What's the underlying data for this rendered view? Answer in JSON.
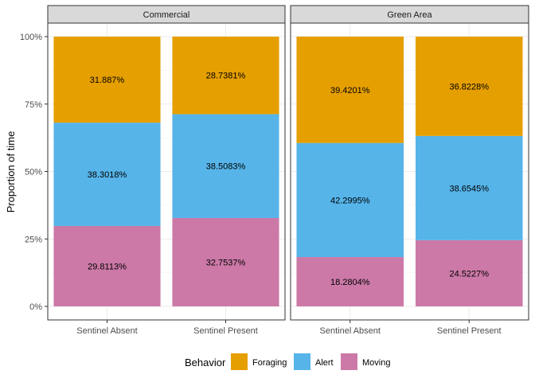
{
  "chart_data": {
    "type": "bar",
    "stacked": true,
    "ylabel": "Proportion of time",
    "xlabel": "",
    "ylim": [
      0,
      1
    ],
    "yticks": [
      0,
      0.25,
      0.5,
      0.75,
      1.0
    ],
    "yticklabels": [
      "0%",
      "25%",
      "50%",
      "75%",
      "100%"
    ],
    "grid": true,
    "legend": {
      "title": "Behavior",
      "position": "bottom",
      "entries": [
        {
          "name": "Foraging",
          "color": "#E69F00"
        },
        {
          "name": "Alert",
          "color": "#56B4E9"
        },
        {
          "name": "Moving",
          "color": "#CC79A7"
        }
      ]
    },
    "panels": [
      {
        "title": "Commercial",
        "categories": [
          "Sentinel Absent",
          "Sentinel Present"
        ],
        "series": [
          {
            "name": "Moving",
            "values": [
              0.298113,
              0.327537
            ],
            "labels": [
              "29.8113%",
              "32.7537%"
            ]
          },
          {
            "name": "Alert",
            "values": [
              0.383018,
              0.385083
            ],
            "labels": [
              "38.3018%",
              "38.5083%"
            ]
          },
          {
            "name": "Foraging",
            "values": [
              0.31887,
              0.287381
            ],
            "labels": [
              "31.887%",
              "28.7381%"
            ]
          }
        ]
      },
      {
        "title": "Green Area",
        "categories": [
          "Sentinel Absent",
          "Sentinel Present"
        ],
        "series": [
          {
            "name": "Moving",
            "values": [
              0.182804,
              0.245227
            ],
            "labels": [
              "18.2804%",
              "24.5227%"
            ]
          },
          {
            "name": "Alert",
            "values": [
              0.422995,
              0.386545
            ],
            "labels": [
              "42.2995%",
              "38.6545%"
            ]
          },
          {
            "name": "Foraging",
            "values": [
              0.394201,
              0.368228
            ],
            "labels": [
              "39.4201%",
              "36.8228%"
            ]
          }
        ]
      }
    ]
  }
}
